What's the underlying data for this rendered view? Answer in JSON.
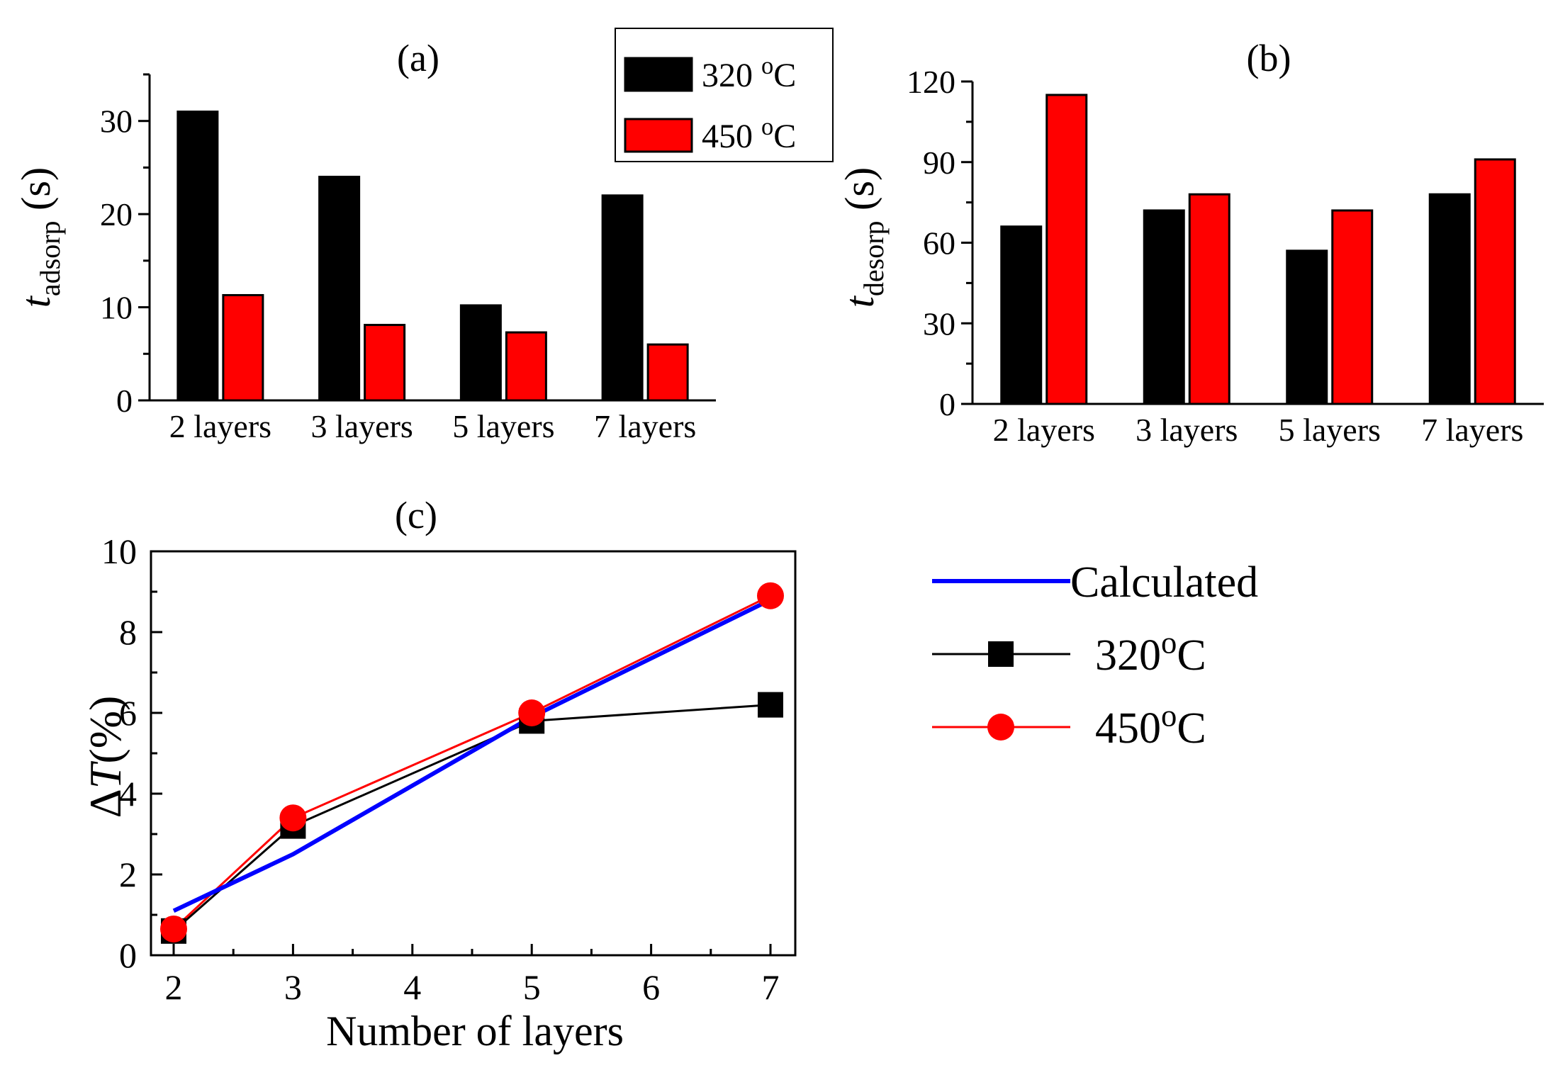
{
  "chart_data": [
    {
      "type": "bar",
      "title": "(a)",
      "ylabel": "t",
      "ylabel_sub": "adsorp",
      "ylabel_unit": "(s)",
      "categories": [
        "2 layers",
        "3 layers",
        "5 layers",
        "7 layers"
      ],
      "ylim": [
        0,
        35
      ],
      "yticks": [
        0,
        10,
        20,
        30
      ],
      "series": [
        {
          "name": "320",
          "name_sup": "o",
          "name_suffix": "C",
          "color": "#000000",
          "values": [
            31,
            24,
            10.2,
            22
          ]
        },
        {
          "name": "450",
          "name_sup": "o",
          "name_suffix": "C",
          "color": "#ff0000",
          "values": [
            11.3,
            8.1,
            7.3,
            6
          ]
        }
      ],
      "legend": "top-right"
    },
    {
      "type": "bar",
      "title": "(b)",
      "ylabel": "t",
      "ylabel_sub": "desorp",
      "ylabel_unit": "(s)",
      "categories": [
        "2 layers",
        "3 layers",
        "5 layers",
        "7 layers"
      ],
      "ylim": [
        0,
        120
      ],
      "yticks": [
        0,
        30,
        60,
        90,
        120
      ],
      "series": [
        {
          "color": "#000000",
          "values": [
            66,
            72,
            57,
            78
          ]
        },
        {
          "color": "#ff0000",
          "values": [
            115,
            78,
            72,
            91
          ]
        }
      ]
    },
    {
      "type": "line",
      "title": "(c)",
      "xlabel": "Number of layers",
      "ylabel": "ΔT(%)",
      "xlim": [
        2,
        7
      ],
      "ylim": [
        0,
        10
      ],
      "xticks": [
        2,
        3,
        4,
        5,
        6,
        7
      ],
      "yticks": [
        0,
        2,
        4,
        6,
        8,
        10
      ],
      "x": [
        2,
        3,
        5,
        7
      ],
      "series": [
        {
          "name": "Calculated",
          "color": "#0000ff",
          "marker": "none",
          "values": [
            1.1,
            2.5,
            5.9,
            8.8
          ]
        },
        {
          "name": "320",
          "name_sup": "o",
          "name_suffix": "C",
          "color": "#000000",
          "marker": "square",
          "values": [
            0.6,
            3.2,
            5.8,
            6.2
          ]
        },
        {
          "name": "450",
          "name_sup": "o",
          "name_suffix": "C",
          "color": "#ff0000",
          "marker": "circle",
          "values": [
            0.65,
            3.4,
            6.0,
            8.9
          ]
        }
      ],
      "legend": "right"
    }
  ]
}
